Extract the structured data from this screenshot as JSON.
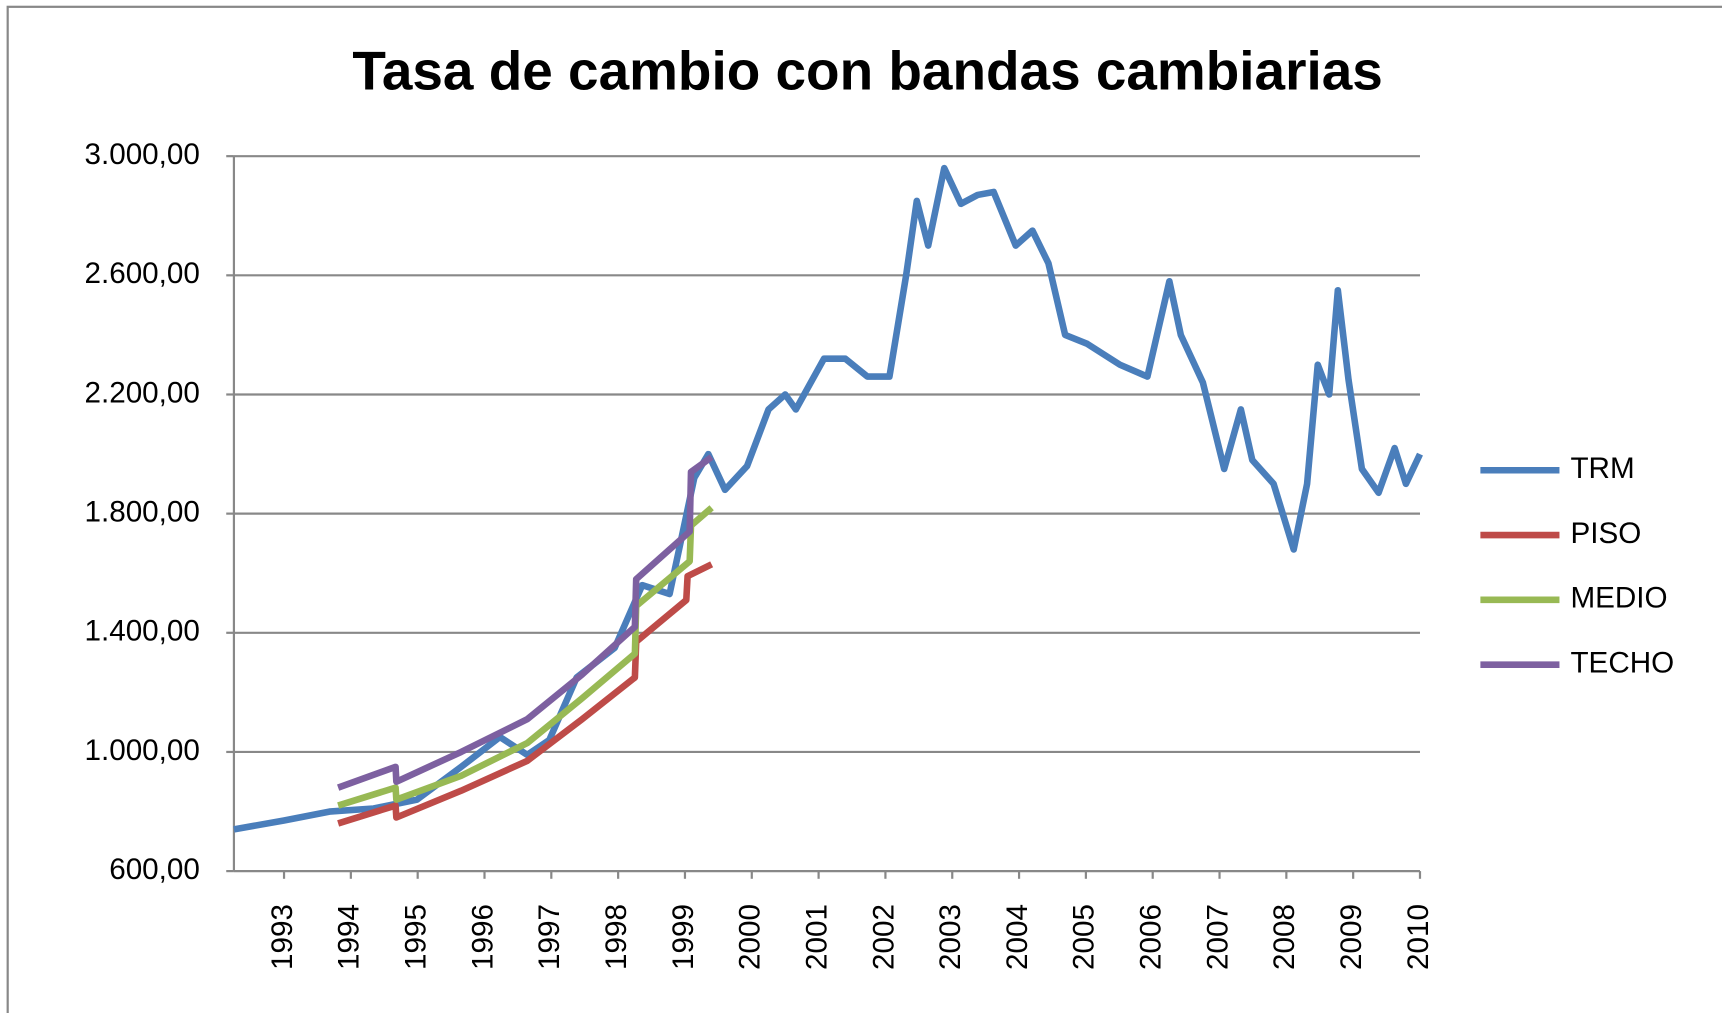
{
  "chart_data": {
    "type": "line",
    "title": "Tasa de cambio con bandas cambiarias",
    "xlim": [
      1992.25,
      2010
    ],
    "xticks": [
      1993,
      1994,
      1995,
      1996,
      1997,
      1998,
      1999,
      2000,
      2001,
      2002,
      2003,
      2004,
      2005,
      2006,
      2007,
      2008,
      2009,
      2010
    ],
    "ylim": [
      600,
      3000
    ],
    "yticks": [
      {
        "value": 600,
        "label": "600,00"
      },
      {
        "value": 1000,
        "label": "1.000,00"
      },
      {
        "value": 1400,
        "label": "1.400,00"
      },
      {
        "value": 1800,
        "label": "1.800,00"
      },
      {
        "value": 2200,
        "label": "2.200,00"
      },
      {
        "value": 2600,
        "label": "2.600,00"
      },
      {
        "value": 3000,
        "label": "3.000,00"
      }
    ],
    "grid": true,
    "legend": "right",
    "series": [
      {
        "name": "TRM",
        "color": "#4a7ebb",
        "x": [
          1992.25,
          1993.0,
          1993.68,
          1994.34,
          1994.99,
          1995.65,
          1996.23,
          1996.64,
          1996.97,
          1997.38,
          1997.95,
          1998.36,
          1998.77,
          1999.14,
          1999.35,
          1999.6,
          1999.93,
          2000.25,
          2000.5,
          2000.66,
          2001.08,
          2001.4,
          2001.73,
          2002.06,
          2002.31,
          2002.47,
          2002.64,
          2002.88,
          2003.13,
          2003.38,
          2003.62,
          2003.95,
          2004.2,
          2004.44,
          2004.69,
          2005.02,
          2005.51,
          2005.92,
          2006.25,
          2006.42,
          2006.75,
          2007.07,
          2007.32,
          2007.49,
          2007.81,
          2008.11,
          2008.31,
          2008.47,
          2008.64,
          2008.77,
          2008.93,
          2009.13,
          2009.38,
          2009.62,
          2009.79,
          2010.0
        ],
        "values": [
          740,
          770,
          800,
          810,
          840,
          950,
          1050,
          990,
          1040,
          1250,
          1350,
          1560,
          1530,
          1920,
          2000,
          1880,
          1960,
          2150,
          2200,
          2150,
          2320,
          2320,
          2260,
          2260,
          2600,
          2850,
          2700,
          2960,
          2840,
          2870,
          2880,
          2700,
          2750,
          2640,
          2400,
          2370,
          2300,
          2260,
          2580,
          2400,
          2240,
          1950,
          2150,
          1980,
          1900,
          1680,
          1900,
          2300,
          2200,
          2550,
          2250,
          1950,
          1870,
          2020,
          1900,
          2000
        ]
      },
      {
        "name": "PISO",
        "color": "#be4b48",
        "x": [
          1993.81,
          1994.67,
          1994.68,
          1995.65,
          1996.64,
          1997.46,
          1998.25,
          1998.27,
          1999.02,
          1999.04,
          1999.4
        ],
        "values": [
          760,
          820,
          780,
          870,
          970,
          1110,
          1250,
          1370,
          1510,
          1590,
          1630
        ]
      },
      {
        "name": "MEDIO",
        "color": "#98b954",
        "x": [
          1993.81,
          1994.67,
          1994.68,
          1995.65,
          1996.64,
          1997.46,
          1998.25,
          1998.27,
          1999.07,
          1999.09,
          1999.4
        ],
        "values": [
          820,
          880,
          840,
          920,
          1030,
          1180,
          1330,
          1490,
          1640,
          1760,
          1820
        ]
      },
      {
        "name": "TECHO",
        "color": "#7d60a0",
        "x": [
          1993.81,
          1994.67,
          1994.68,
          1995.65,
          1996.64,
          1997.46,
          1998.25,
          1998.27,
          1999.07,
          1999.09,
          1999.4
        ],
        "values": [
          880,
          950,
          900,
          1000,
          1110,
          1260,
          1420,
          1580,
          1740,
          1940,
          1990
        ]
      }
    ]
  }
}
